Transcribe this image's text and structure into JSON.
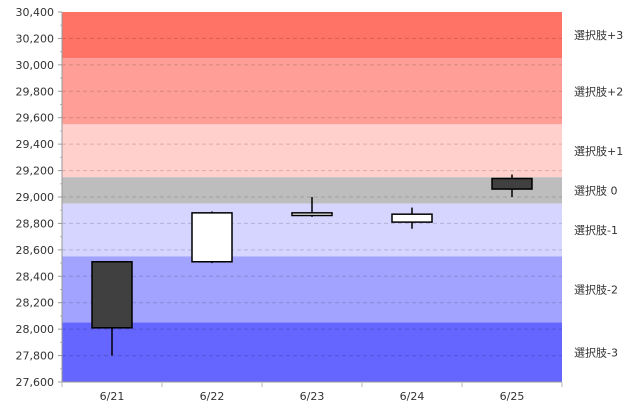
{
  "chart_data": {
    "type": "candlestick",
    "categories": [
      "6/21",
      "6/22",
      "6/23",
      "6/24",
      "6/25"
    ],
    "candles": [
      {
        "date": "6/21",
        "open": 28510,
        "high": 28510,
        "low": 27800,
        "close": 28010
      },
      {
        "date": "6/22",
        "open": 28510,
        "high": 28890,
        "low": 28500,
        "close": 28880
      },
      {
        "date": "6/23",
        "open": 28860,
        "high": 29000,
        "low": 28850,
        "close": 28880
      },
      {
        "date": "6/24",
        "open": 28810,
        "high": 28920,
        "low": 28760,
        "close": 28870
      },
      {
        "date": "6/25",
        "open": 29140,
        "high": 29170,
        "low": 29000,
        "close": 29060
      }
    ],
    "ylim": [
      27600,
      30400
    ],
    "yticks": [
      27600,
      27800,
      28000,
      28200,
      28400,
      28600,
      28800,
      29000,
      29200,
      29400,
      29600,
      29800,
      30000,
      30200,
      30400
    ],
    "ytick_labels": [
      "27,600",
      "27,800",
      "28,000",
      "28,200",
      "28,400",
      "28,600",
      "28,800",
      "29,000",
      "29,200",
      "29,400",
      "29,600",
      "29,800",
      "30,000",
      "30,200",
      "30,400"
    ],
    "grid": true,
    "bands": [
      {
        "label": "選択肢+3",
        "from": 30050,
        "to": 30400,
        "color": "#ff7366"
      },
      {
        "label": "選択肢+2",
        "from": 29550,
        "to": 30050,
        "color": "#ff9e97"
      },
      {
        "label": "選択肢+1",
        "from": 29150,
        "to": 29550,
        "color": "#ffd0cc"
      },
      {
        "label": "選択肢 0",
        "from": 28950,
        "to": 29150,
        "color": "#bdbdbd"
      },
      {
        "label": "選択肢-1",
        "from": 28550,
        "to": 28950,
        "color": "#d5d5ff"
      },
      {
        "label": "選択肢-2",
        "from": 28050,
        "to": 28550,
        "color": "#a2a2ff"
      },
      {
        "label": "選択肢-3",
        "from": 27600,
        "to": 28050,
        "color": "#6565ff"
      }
    ],
    "up_color": "#ffffff",
    "down_color": "#404040"
  }
}
